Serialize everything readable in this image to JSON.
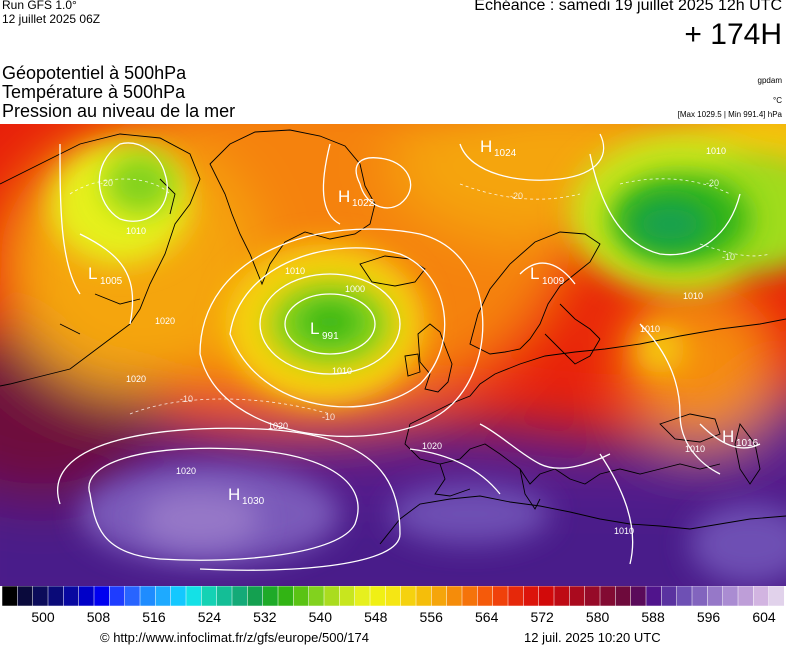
{
  "header": {
    "run_title": "Run GFS 1.0°",
    "run_date": "12 juillet 2025 06Z",
    "echeance": "Echéance : samedi 19 juillet 2025 12h UTC",
    "forecast_hour": "+ 174H"
  },
  "layers": [
    "Géopotentiel à 500hPa",
    "Température à 500hPa",
    "Pression au niveau de la mer"
  ],
  "units": {
    "gpdam": "gpdam",
    "celsius": "°C",
    "pressure_range": "[Max 1029.5 | Min 991.4] hPa"
  },
  "pressure_centers": [
    {
      "type": "H",
      "value": "1022"
    },
    {
      "type": "H",
      "value": "1024"
    },
    {
      "type": "L",
      "value": "1005"
    },
    {
      "type": "L",
      "value": "991"
    },
    {
      "type": "L",
      "value": "1009"
    },
    {
      "type": "H",
      "value": "1016"
    },
    {
      "type": "H",
      "value": "1030"
    }
  ],
  "isobar_labels": [
    "1010",
    "1020",
    "1000",
    "1010",
    "1020",
    "1020",
    "1020",
    "1010",
    "1010",
    "1010",
    "1010",
    "1010",
    "1010",
    "1020"
  ],
  "isotherm_labels": [
    "-20",
    "-20",
    "-10",
    "-10",
    "-20",
    "-10"
  ],
  "colorbar": {
    "colors": [
      "#000000",
      "#0a0a3c",
      "#0c0c5a",
      "#0a0a78",
      "#0808a0",
      "#0000c8",
      "#0000f0",
      "#1e3cff",
      "#2864ff",
      "#1e8cff",
      "#1eaaff",
      "#14c8ff",
      "#14e1e6",
      "#14d2b4",
      "#14be96",
      "#14aa78",
      "#14a050",
      "#1eaa28",
      "#32b414",
      "#5ac314",
      "#82d21e",
      "#aadc1e",
      "#c8e61e",
      "#e6f01e",
      "#f0f014",
      "#f5e614",
      "#f5d20f",
      "#f5be0a",
      "#f5a50a",
      "#f58c0a",
      "#f5730a",
      "#f55a0a",
      "#f0410a",
      "#e6280a",
      "#dc140a",
      "#d20a0a",
      "#be0a14",
      "#aa0a1e",
      "#960a28",
      "#820a32",
      "#6e0a3c",
      "#5a0a5a",
      "#50148c",
      "#5a32a0",
      "#6e50b4",
      "#8264be",
      "#9678c8",
      "#aa8cd2",
      "#be9ed8",
      "#d2b4e1",
      "#e1d2eb"
    ],
    "labels": [
      "500",
      "508",
      "516",
      "524",
      "532",
      "540",
      "548",
      "556",
      "564",
      "572",
      "580",
      "588",
      "596",
      "604"
    ]
  },
  "footer": {
    "url": "© http://www.infoclimat.fr/z/gfs/europe/500/174",
    "timestamp": "12 juil. 2025 10:20 UTC"
  }
}
